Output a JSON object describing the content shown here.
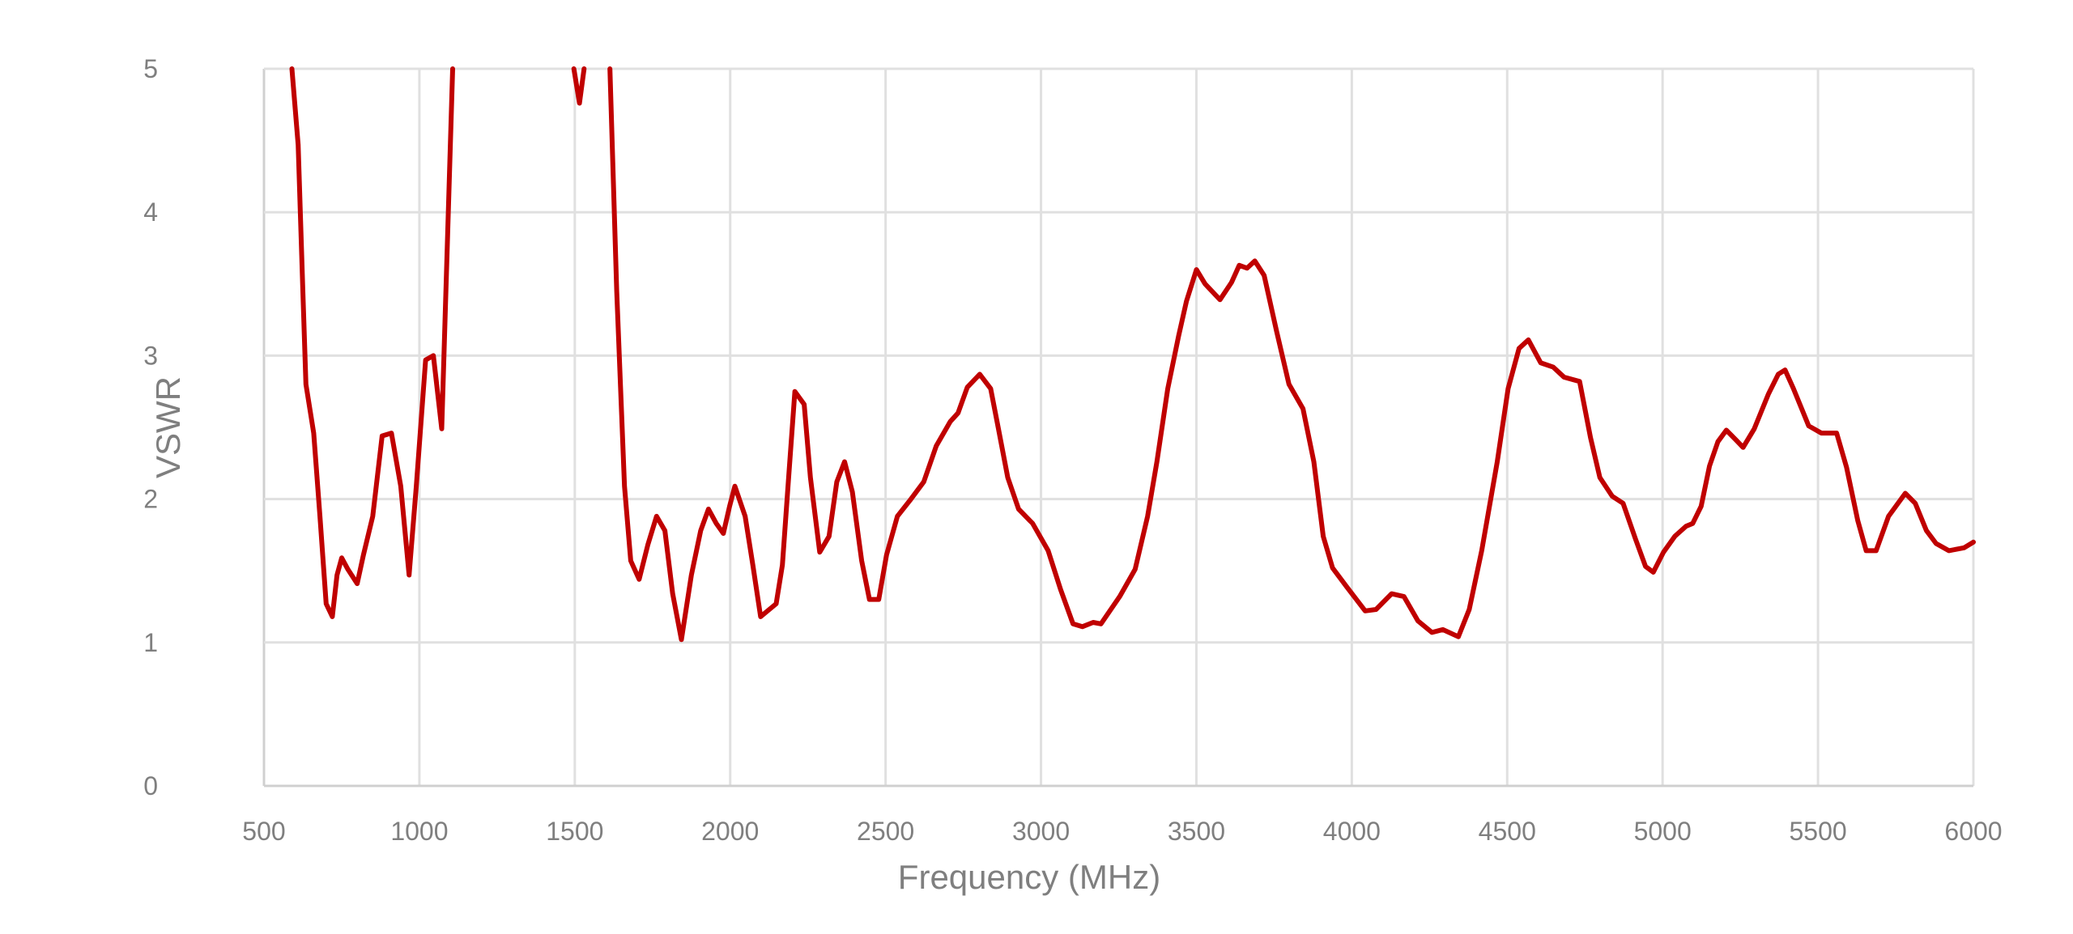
{
  "chart_data": {
    "type": "line",
    "title": "",
    "xlabel": "Frequency (MHz)",
    "ylabel": "VSWR",
    "xlim": [
      500,
      6000
    ],
    "ylim": [
      0,
      5
    ],
    "grid": true,
    "legend": "none",
    "x_ticks": [
      500,
      1000,
      1500,
      2000,
      2500,
      3000,
      3500,
      4000,
      4500,
      5000,
      5500,
      6000
    ],
    "y_ticks": [
      0,
      1,
      2,
      3,
      4,
      5
    ],
    "series": [
      {
        "name": "VSWR",
        "color": "#C00000",
        "segments": [
          [
            [
              590,
              5.0
            ],
            [
              610,
              4.47
            ],
            [
              625,
              3.45
            ],
            [
              635,
              2.8
            ],
            [
              660,
              2.46
            ],
            [
              680,
              1.88
            ],
            [
              700,
              1.27
            ],
            [
              720,
              1.18
            ],
            [
              735,
              1.47
            ],
            [
              750,
              1.59
            ],
            [
              770,
              1.51
            ],
            [
              800,
              1.41
            ],
            [
              820,
              1.61
            ],
            [
              850,
              1.88
            ],
            [
              880,
              2.44
            ],
            [
              910,
              2.46
            ],
            [
              940,
              2.09
            ],
            [
              967,
              1.47
            ],
            [
              990,
              2.09
            ],
            [
              1020,
              2.97
            ],
            [
              1045,
              3.0
            ],
            [
              1072,
              2.49
            ],
            [
              1090,
              3.79
            ],
            [
              1107,
              5.0
            ]
          ],
          [
            [
              1497,
              5.0
            ],
            [
              1515,
              4.76
            ],
            [
              1530,
              5.0
            ]
          ],
          [
            [
              1613,
              5.0
            ],
            [
              1635,
              3.45
            ],
            [
              1660,
              2.09
            ],
            [
              1680,
              1.57
            ],
            [
              1707,
              1.44
            ],
            [
              1735,
              1.68
            ],
            [
              1763,
              1.88
            ],
            [
              1790,
              1.78
            ],
            [
              1815,
              1.34
            ],
            [
              1843,
              1.02
            ],
            [
              1875,
              1.47
            ],
            [
              1905,
              1.78
            ],
            [
              1930,
              1.93
            ],
            [
              1955,
              1.83
            ],
            [
              1978,
              1.76
            ],
            [
              1998,
              1.95
            ],
            [
              2015,
              2.09
            ],
            [
              2048,
              1.88
            ],
            [
              2073,
              1.54
            ],
            [
              2098,
              1.18
            ],
            [
              2148,
              1.27
            ],
            [
              2168,
              1.54
            ],
            [
              2188,
              2.15
            ],
            [
              2208,
              2.75
            ],
            [
              2238,
              2.66
            ],
            [
              2258,
              2.15
            ],
            [
              2288,
              1.63
            ],
            [
              2318,
              1.74
            ],
            [
              2343,
              2.12
            ],
            [
              2368,
              2.26
            ],
            [
              2393,
              2.05
            ],
            [
              2423,
              1.57
            ],
            [
              2448,
              1.3
            ],
            [
              2478,
              1.3
            ],
            [
              2503,
              1.61
            ],
            [
              2538,
              1.88
            ],
            [
              2578,
              1.99
            ],
            [
              2623,
              2.12
            ],
            [
              2663,
              2.37
            ],
            [
              2708,
              2.54
            ],
            [
              2733,
              2.6
            ],
            [
              2763,
              2.78
            ],
            [
              2803,
              2.87
            ],
            [
              2838,
              2.77
            ],
            [
              2863,
              2.49
            ],
            [
              2893,
              2.15
            ],
            [
              2928,
              1.93
            ],
            [
              2973,
              1.83
            ],
            [
              3023,
              1.64
            ],
            [
              3063,
              1.37
            ],
            [
              3103,
              1.13
            ],
            [
              3133,
              1.11
            ],
            [
              3168,
              1.14
            ],
            [
              3193,
              1.13
            ],
            [
              3253,
              1.32
            ],
            [
              3303,
              1.51
            ],
            [
              3343,
              1.88
            ],
            [
              3373,
              2.26
            ],
            [
              3408,
              2.77
            ],
            [
              3443,
              3.14
            ],
            [
              3468,
              3.38
            ],
            [
              3500,
              3.6
            ],
            [
              3528,
              3.5
            ],
            [
              3576,
              3.39
            ],
            [
              3613,
              3.51
            ],
            [
              3638,
              3.63
            ],
            [
              3663,
              3.61
            ],
            [
              3688,
              3.66
            ],
            [
              3718,
              3.56
            ],
            [
              3758,
              3.17
            ],
            [
              3798,
              2.8
            ],
            [
              3843,
              2.63
            ],
            [
              3878,
              2.26
            ],
            [
              3908,
              1.74
            ],
            [
              3938,
              1.52
            ],
            [
              3983,
              1.39
            ],
            [
              4043,
              1.22
            ],
            [
              4078,
              1.23
            ],
            [
              4128,
              1.34
            ],
            [
              4168,
              1.32
            ],
            [
              4213,
              1.15
            ],
            [
              4258,
              1.07
            ],
            [
              4293,
              1.09
            ],
            [
              4343,
              1.04
            ],
            [
              4378,
              1.23
            ],
            [
              4418,
              1.64
            ],
            [
              4468,
              2.26
            ],
            [
              4503,
              2.77
            ],
            [
              4538,
              3.05
            ],
            [
              4568,
              3.11
            ],
            [
              4608,
              2.95
            ],
            [
              4648,
              2.92
            ],
            [
              4683,
              2.85
            ],
            [
              4733,
              2.82
            ],
            [
              4768,
              2.43
            ],
            [
              4798,
              2.15
            ],
            [
              4838,
              2.02
            ],
            [
              4873,
              1.97
            ],
            [
              4913,
              1.72
            ],
            [
              4945,
              1.53
            ],
            [
              4970,
              1.49
            ],
            [
              5003,
              1.63
            ],
            [
              5039,
              1.74
            ],
            [
              5075,
              1.81
            ],
            [
              5097,
              1.83
            ],
            [
              5124,
              1.95
            ],
            [
              5151,
              2.23
            ],
            [
              5178,
              2.4
            ],
            [
              5205,
              2.48
            ],
            [
              5237,
              2.41
            ],
            [
              5259,
              2.36
            ],
            [
              5295,
              2.49
            ],
            [
              5340,
              2.73
            ],
            [
              5372,
              2.87
            ],
            [
              5394,
              2.9
            ],
            [
              5421,
              2.77
            ],
            [
              5470,
              2.51
            ],
            [
              5511,
              2.46
            ],
            [
              5560,
              2.46
            ],
            [
              5592,
              2.22
            ],
            [
              5628,
              1.85
            ],
            [
              5655,
              1.64
            ],
            [
              5687,
              1.64
            ],
            [
              5727,
              1.88
            ],
            [
              5781,
              2.04
            ],
            [
              5813,
              1.97
            ],
            [
              5849,
              1.78
            ],
            [
              5880,
              1.69
            ],
            [
              5921,
              1.64
            ],
            [
              5970,
              1.66
            ],
            [
              6000,
              1.7
            ]
          ]
        ]
      }
    ]
  }
}
